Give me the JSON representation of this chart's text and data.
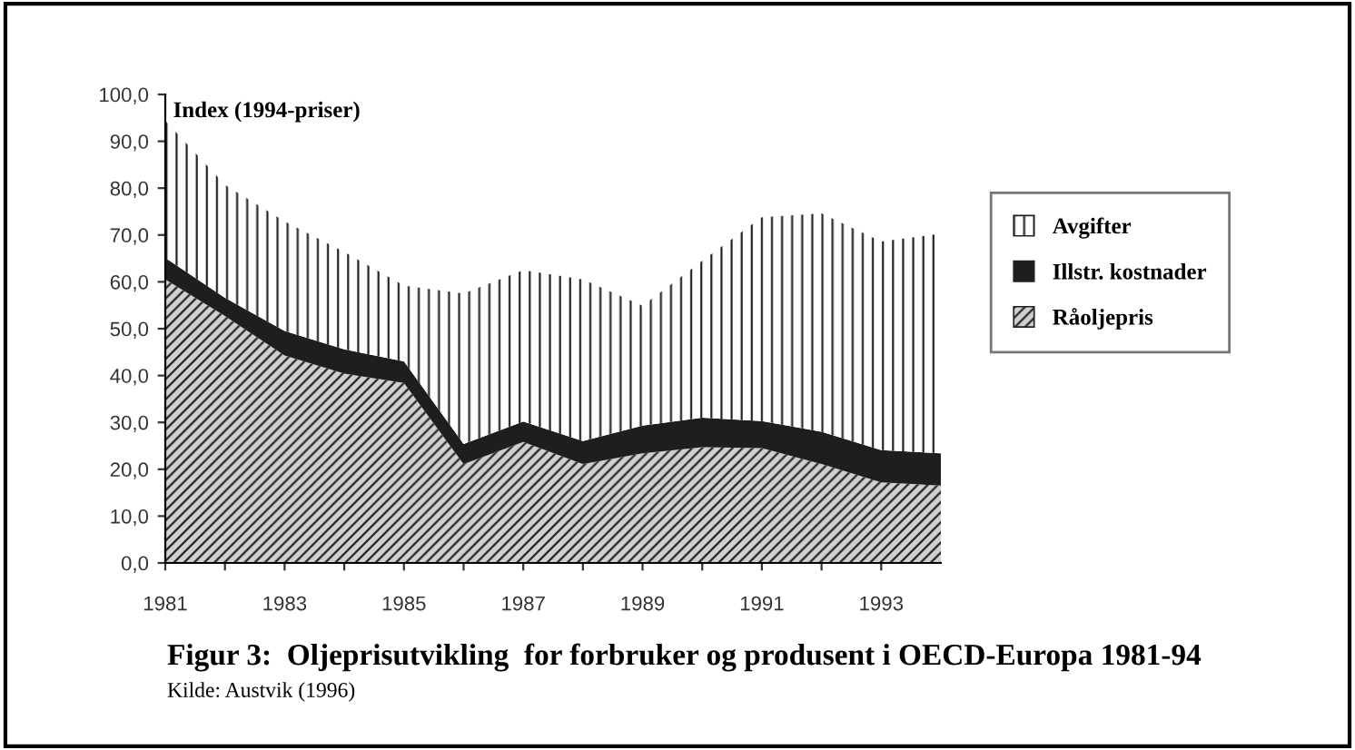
{
  "chart_data": {
    "type": "area",
    "stacked": true,
    "title": "Figur 3:  Oljeprisutvikling  for forbruker og produsent i OECD-Europa 1981-94",
    "ylabel": "Index (1994-priser)",
    "annotations": [
      "Kilde: Austvik (1996)"
    ],
    "x": [
      1981,
      1982,
      1983,
      1984,
      1985,
      1986,
      1987,
      1988,
      1989,
      1990,
      1991,
      1992,
      1993,
      1994
    ],
    "series": [
      {
        "name": "Råoljepris",
        "color": "#d0d0d0",
        "values": [
          60.5,
          52.7,
          44.3,
          40.4,
          38.4,
          21.1,
          25.8,
          21.1,
          23.4,
          24.7,
          24.5,
          21.1,
          17.2,
          16.5
        ]
      },
      {
        "name": "Illstr. kostnader",
        "color": "#1e1e1e",
        "values": [
          4.6,
          3.9,
          5.2,
          5.2,
          4.6,
          4.3,
          4.4,
          4.9,
          5.9,
          6.3,
          5.8,
          6.9,
          6.9,
          6.9
        ]
      },
      {
        "name": "Avgifter",
        "color": "#ffffff",
        "values": [
          29.3,
          24.1,
          23.4,
          20.8,
          16.2,
          32.1,
          32.3,
          34.5,
          25.6,
          33.5,
          43.5,
          46.6,
          44.5,
          46.9
        ]
      }
    ],
    "xlim": [
      1981,
      1994
    ],
    "xticks": [
      1981,
      {
        "value": 1982,
        "label": null
      },
      1983,
      {
        "value": 1984,
        "label": null
      },
      1985,
      {
        "value": 1986,
        "label": null
      },
      1987,
      {
        "value": 1988,
        "label": null
      },
      1989,
      {
        "value": 1990,
        "label": null
      },
      1991,
      {
        "value": 1992,
        "label": null
      },
      1993
    ],
    "ylim": [
      0,
      100
    ],
    "yticks": [
      {
        "value": 0,
        "label": "0,0"
      },
      {
        "value": 10,
        "label": "10,0"
      },
      {
        "value": 20,
        "label": "20,0"
      },
      {
        "value": 30,
        "label": "30,0"
      },
      {
        "value": 40,
        "label": "40,0"
      },
      {
        "value": 50,
        "label": "50,0"
      },
      {
        "value": 60,
        "label": "60,0"
      },
      {
        "value": 70,
        "label": "70,0"
      },
      {
        "value": 80,
        "label": "80,0"
      },
      {
        "value": 90,
        "label": "90,0"
      },
      {
        "value": 100,
        "label": "100,0"
      }
    ],
    "grid": false,
    "legend": "right"
  }
}
